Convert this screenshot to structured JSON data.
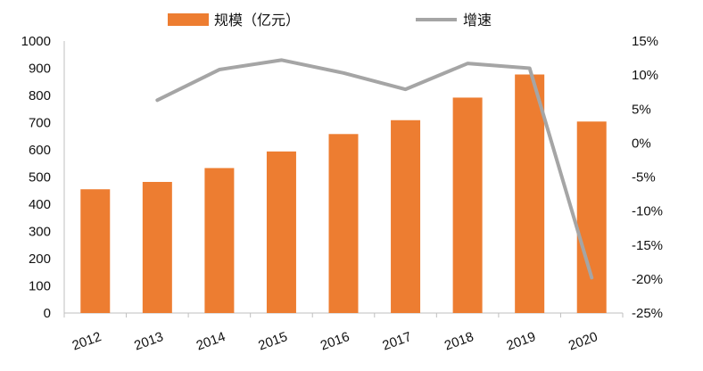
{
  "chart_data": {
    "type": "bar+line",
    "categories": [
      "2012",
      "2013",
      "2014",
      "2015",
      "2016",
      "2017",
      "2018",
      "2019",
      "2020"
    ],
    "series": [
      {
        "name": "规模（亿元）",
        "type": "bar",
        "axis": "left",
        "color": "#ED7D31",
        "values": [
          455,
          482,
          533,
          594,
          658,
          709,
          792,
          877,
          704
        ]
      },
      {
        "name": "增速",
        "type": "line",
        "axis": "right",
        "color": "#A5A5A5",
        "values": [
          null,
          6.3,
          10.8,
          12.2,
          10.3,
          7.9,
          11.7,
          11.0,
          -19.8
        ]
      }
    ],
    "y_left": {
      "ylim": [
        0,
        1000
      ],
      "ticks": [
        "0",
        "100",
        "200",
        "300",
        "400",
        "500",
        "600",
        "700",
        "800",
        "900",
        "1000"
      ]
    },
    "y_right": {
      "ylim": [
        -25,
        15
      ],
      "ticks": [
        "-25%",
        "-20%",
        "-15%",
        "-10%",
        "-5%",
        "0%",
        "5%",
        "10%",
        "15%"
      ]
    },
    "grid": false,
    "legend": "top"
  }
}
